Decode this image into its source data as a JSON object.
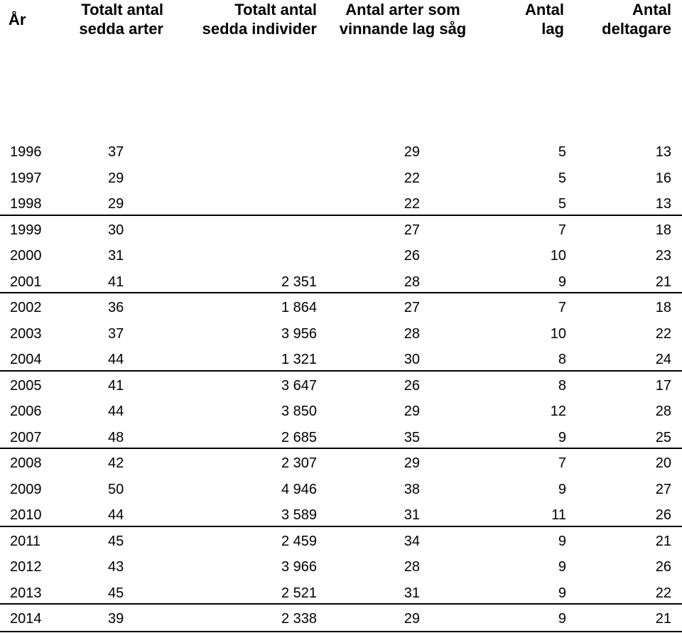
{
  "table": {
    "headers": [
      "År",
      "Totalt antal\nsedda arter",
      "Totalt antal\nsedda individer",
      "Antal arter som\nvinnande lag såg",
      "Antal\nlag",
      "Antal\ndeltagare"
    ],
    "rows": [
      [
        "1996",
        "37",
        "",
        "29",
        "5",
        "13"
      ],
      [
        "1997",
        "29",
        "",
        "22",
        "5",
        "16"
      ],
      [
        "1998",
        "29",
        "",
        "22",
        "5",
        "13"
      ],
      [
        "1999",
        "30",
        "",
        "27",
        "7",
        "18"
      ],
      [
        "2000",
        "31",
        "",
        "26",
        "10",
        "23"
      ],
      [
        "2001",
        "41",
        "2 351",
        "28",
        "9",
        "21"
      ],
      [
        "2002",
        "36",
        "1 864",
        "27",
        "7",
        "18"
      ],
      [
        "2003",
        "37",
        "3 956",
        "28",
        "10",
        "22"
      ],
      [
        "2004",
        "44",
        "1 321",
        "30",
        "8",
        "24"
      ],
      [
        "2005",
        "41",
        "3 647",
        "26",
        "8",
        "17"
      ],
      [
        "2006",
        "44",
        "3 850",
        "29",
        "12",
        "28"
      ],
      [
        "2007",
        "48",
        "2 685",
        "35",
        "9",
        "25"
      ],
      [
        "2008",
        "42",
        "2 307",
        "29",
        "7",
        "20"
      ],
      [
        "2009",
        "50",
        "4 946",
        "38",
        "9",
        "27"
      ],
      [
        "2010",
        "44",
        "3 589",
        "31",
        "11",
        "26"
      ],
      [
        "2011",
        "45",
        "2 459",
        "34",
        "9",
        "21"
      ],
      [
        "2012",
        "43",
        "3 966",
        "28",
        "9",
        "26"
      ],
      [
        "2013",
        "45",
        "2 521",
        "31",
        "9",
        "22"
      ],
      [
        "2014",
        "39",
        "2 338",
        "29",
        "9",
        "21"
      ]
    ]
  }
}
